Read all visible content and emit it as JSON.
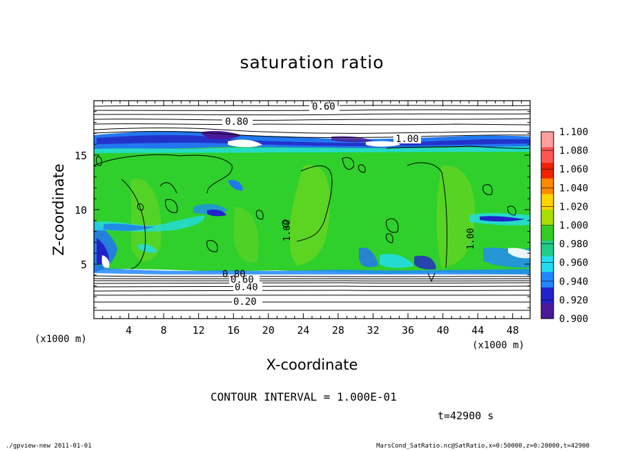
{
  "chart_data": {
    "type": "heatmap",
    "title": "saturation ratio",
    "xlabel": "X-coordinate",
    "ylabel": "Z-coordinate",
    "x_unit": "(x1000 m)",
    "z_unit": "(x1000 m)",
    "xlim": [
      0,
      50
    ],
    "ylim": [
      0,
      20
    ],
    "x_ticks": [
      "4",
      "8",
      "12",
      "16",
      "20",
      "24",
      "28",
      "32",
      "36",
      "40",
      "44",
      "48"
    ],
    "y_ticks": [
      "5",
      "10",
      "15"
    ],
    "contour_interval": "CONTOUR INTERVAL = 1.000E-01",
    "contour_labels": [
      "0.60",
      "0.80",
      "1.00",
      "1.00",
      "1.00",
      "0.20",
      "0.40",
      "0.60",
      "0.80"
    ],
    "colorbar": {
      "levels": [
        "1.100",
        "1.080",
        "1.060",
        "1.040",
        "1.020",
        "1.000",
        "0.980",
        "0.960",
        "0.940",
        "0.920",
        "0.900"
      ],
      "colors": [
        "#ff9f9f",
        "#ff5555",
        "#ee2200",
        "#ff8800",
        "#ffd400",
        "#aadd00",
        "#33cc22",
        "#22cc88",
        "#22ddee",
        "#2288ff",
        "#2222cc",
        "#4a1a9a"
      ]
    },
    "field_summary": {
      "dominant_value_range": "1.000-1.020",
      "dry_layer_z_top": 4.5,
      "upper_band_z": [
        16.2,
        17.3
      ]
    }
  },
  "time_label": "t=42900 s",
  "footer": {
    "left": "./gpview-new   2011-01-01",
    "right": "MarsCond_SatRatio.nc@SatRatio,x=0:50000,z=0:20000,t=42900"
  }
}
